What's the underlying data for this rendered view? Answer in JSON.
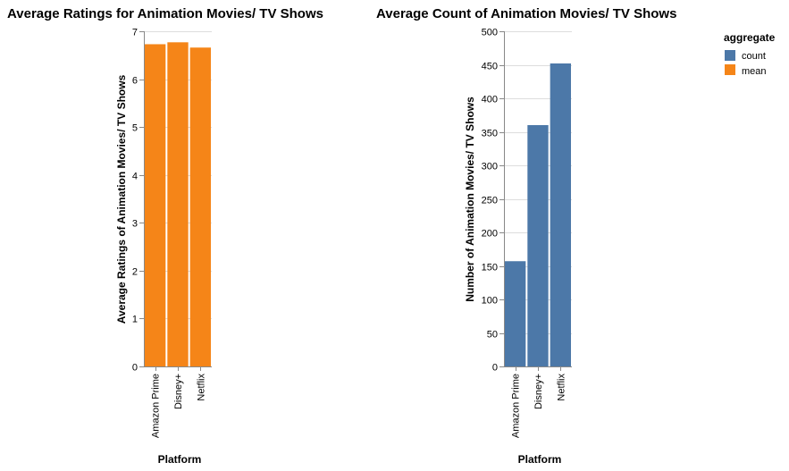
{
  "chart_data": [
    {
      "type": "bar",
      "title": "Average Ratings for Animation Movies/ TV Shows",
      "xlabel": "Platform",
      "ylabel": "Average Ratings of Animation Movies/ TV Shows",
      "categories": [
        "Amazon Prime",
        "Disney+",
        "Netflix"
      ],
      "values": [
        6.73,
        6.77,
        6.66
      ],
      "series_name": "mean",
      "color": "#f58518",
      "ylim": [
        0,
        7
      ],
      "yticks": [
        0,
        1,
        2,
        3,
        4,
        5,
        6,
        7
      ],
      "grid": true
    },
    {
      "type": "bar",
      "title": "Average Count of Animation Movies/ TV Shows",
      "xlabel": "Platform",
      "ylabel": "Number of Animation Movies/ TV Shows",
      "categories": [
        "Amazon Prime",
        "Disney+",
        "Netflix"
      ],
      "values": [
        157,
        360,
        452
      ],
      "series_name": "count",
      "color": "#4c78a8",
      "ylim": [
        0,
        500
      ],
      "yticks": [
        0,
        50,
        100,
        150,
        200,
        250,
        300,
        350,
        400,
        450,
        500
      ],
      "grid": true
    }
  ],
  "legend": {
    "title": "aggregate",
    "items": [
      {
        "label": "count",
        "color": "#4c78a8"
      },
      {
        "label": "mean",
        "color": "#f58518"
      }
    ],
    "position": "right"
  }
}
